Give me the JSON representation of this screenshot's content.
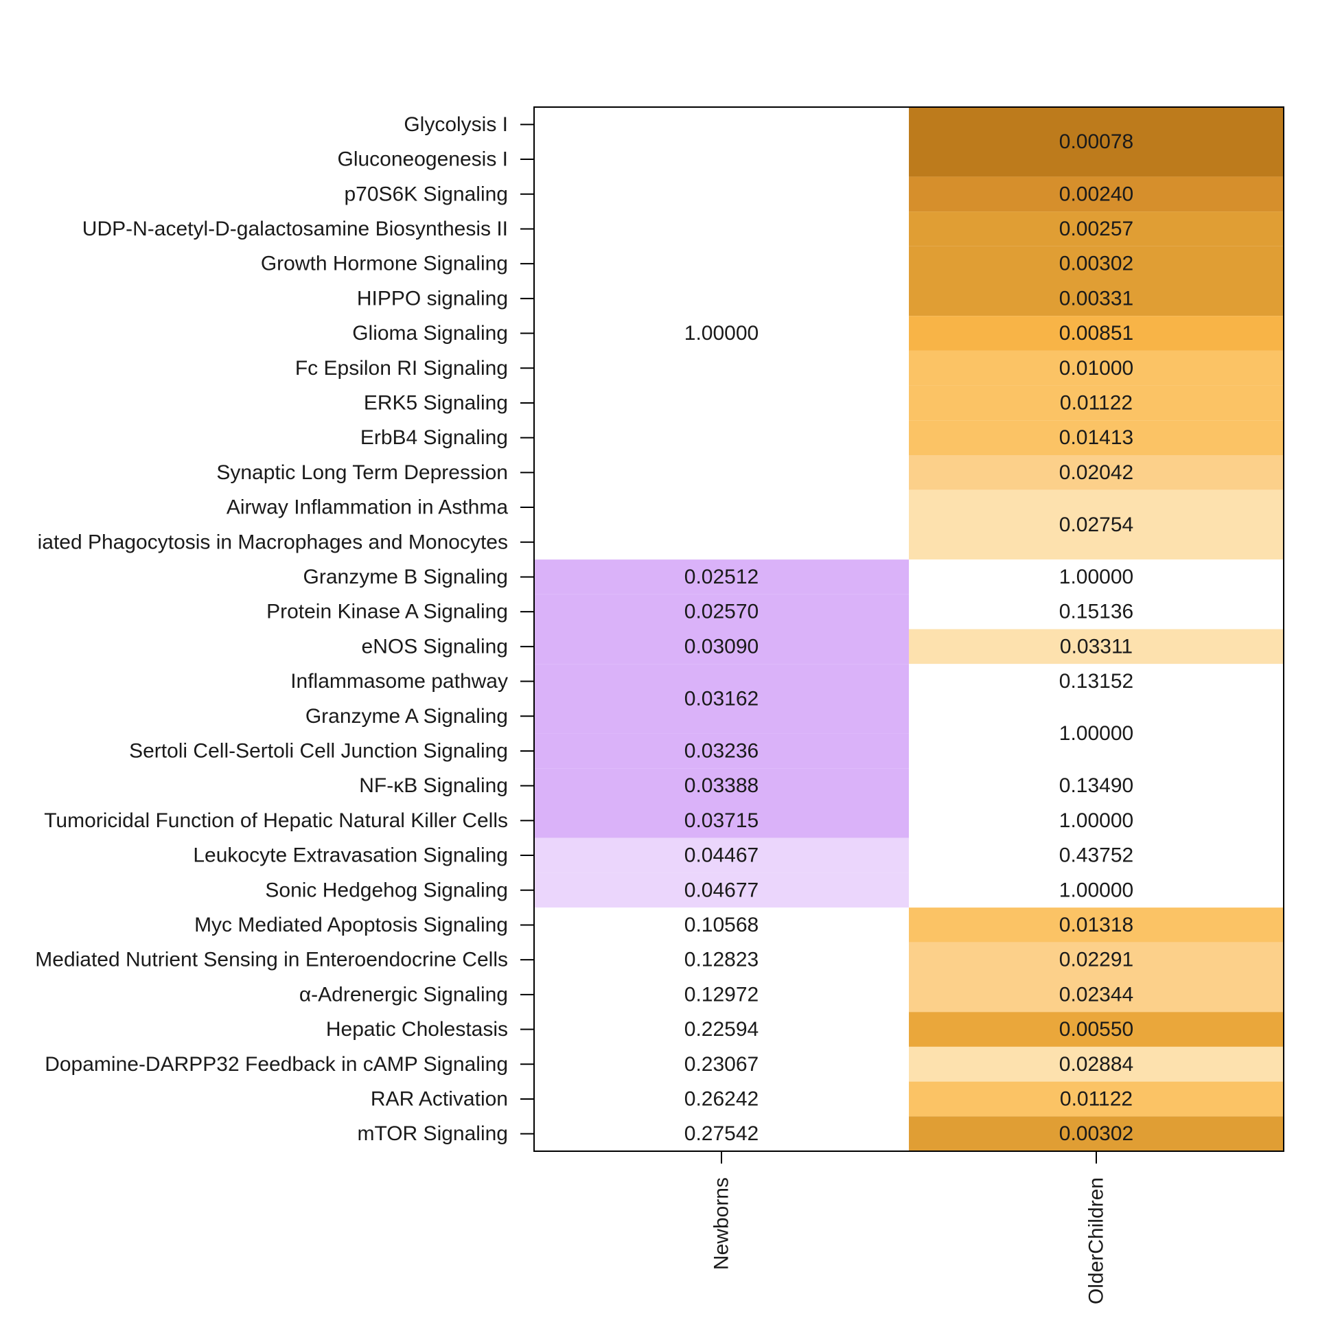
{
  "chart_data": {
    "type": "heatmap",
    "columns": [
      "Newborns",
      "OlderChildren"
    ],
    "rows": [
      "Glycolysis I",
      "Gluconeogenesis I",
      "p70S6K Signaling",
      "UDP-N-acetyl-D-galactosamine Biosynthesis II",
      "Growth Hormone Signaling",
      "HIPPO signaling",
      "Glioma Signaling",
      "Fc Epsilon RI Signaling",
      "ERK5 Signaling",
      "ErbB4 Signaling",
      "Synaptic Long Term Depression",
      "Airway Inflammation in Asthma",
      "iated Phagocytosis in Macrophages and Monocytes",
      "Granzyme B Signaling",
      "Protein Kinase A Signaling",
      "eNOS Signaling",
      "Inflammasome pathway",
      "Granzyme A Signaling",
      "Sertoli Cell-Sertoli Cell Junction Signaling",
      "NF-κB Signaling",
      "Tumoricidal Function of Hepatic Natural Killer Cells",
      "Leukocyte Extravasation Signaling",
      "Sonic Hedgehog Signaling",
      "Myc Mediated Apoptosis Signaling",
      "Mediated Nutrient Sensing in Enteroendocrine Cells",
      "α-Adrenergic Signaling",
      "Hepatic Cholestasis",
      "Dopamine-DARPP32 Feedback in cAMP Signaling",
      "RAR Activation",
      "mTOR Signaling"
    ],
    "cells": [
      {
        "col": 0,
        "start": 0,
        "span": 13,
        "value": "1.00000",
        "color": "#ffffff"
      },
      {
        "col": 0,
        "start": 13,
        "span": 1,
        "value": "0.02512",
        "color": "#dab2f9"
      },
      {
        "col": 0,
        "start": 14,
        "span": 1,
        "value": "0.02570",
        "color": "#dab2f9"
      },
      {
        "col": 0,
        "start": 15,
        "span": 1,
        "value": "0.03090",
        "color": "#dab2f9"
      },
      {
        "col": 0,
        "start": 16,
        "span": 2,
        "value": "0.03162",
        "color": "#dab2f9"
      },
      {
        "col": 0,
        "start": 18,
        "span": 1,
        "value": "0.03236",
        "color": "#dab2f9"
      },
      {
        "col": 0,
        "start": 19,
        "span": 1,
        "value": "0.03388",
        "color": "#dab2f9"
      },
      {
        "col": 0,
        "start": 20,
        "span": 1,
        "value": "0.03715",
        "color": "#dab2f9"
      },
      {
        "col": 0,
        "start": 21,
        "span": 1,
        "value": "0.04467",
        "color": "#ebd6fc"
      },
      {
        "col": 0,
        "start": 22,
        "span": 1,
        "value": "0.04677",
        "color": "#ebd6fc"
      },
      {
        "col": 0,
        "start": 23,
        "span": 1,
        "value": "0.10568",
        "color": "#ffffff"
      },
      {
        "col": 0,
        "start": 24,
        "span": 1,
        "value": "0.12823",
        "color": "#ffffff"
      },
      {
        "col": 0,
        "start": 25,
        "span": 1,
        "value": "0.12972",
        "color": "#ffffff"
      },
      {
        "col": 0,
        "start": 26,
        "span": 1,
        "value": "0.22594",
        "color": "#ffffff"
      },
      {
        "col": 0,
        "start": 27,
        "span": 1,
        "value": "0.23067",
        "color": "#ffffff"
      },
      {
        "col": 0,
        "start": 28,
        "span": 1,
        "value": "0.26242",
        "color": "#ffffff"
      },
      {
        "col": 0,
        "start": 29,
        "span": 1,
        "value": "0.27542",
        "color": "#ffffff"
      },
      {
        "col": 1,
        "start": 0,
        "span": 2,
        "value": "0.00078",
        "color": "#bd7b1c"
      },
      {
        "col": 1,
        "start": 2,
        "span": 1,
        "value": "0.00240",
        "color": "#d68f2c"
      },
      {
        "col": 1,
        "start": 3,
        "span": 1,
        "value": "0.00257",
        "color": "#e09e34"
      },
      {
        "col": 1,
        "start": 4,
        "span": 1,
        "value": "0.00302",
        "color": "#e09e34"
      },
      {
        "col": 1,
        "start": 5,
        "span": 1,
        "value": "0.00331",
        "color": "#e09e34"
      },
      {
        "col": 1,
        "start": 6,
        "span": 1,
        "value": "0.00851",
        "color": "#f8b447"
      },
      {
        "col": 1,
        "start": 7,
        "span": 1,
        "value": "0.01000",
        "color": "#fbc365"
      },
      {
        "col": 1,
        "start": 8,
        "span": 1,
        "value": "0.01122",
        "color": "#fbc365"
      },
      {
        "col": 1,
        "start": 9,
        "span": 1,
        "value": "0.01413",
        "color": "#fbc365"
      },
      {
        "col": 1,
        "start": 10,
        "span": 1,
        "value": "0.02042",
        "color": "#fcd08a"
      },
      {
        "col": 1,
        "start": 11,
        "span": 2,
        "value": "0.02754",
        "color": "#fde1ae"
      },
      {
        "col": 1,
        "start": 13,
        "span": 1,
        "value": "1.00000",
        "color": "#ffffff"
      },
      {
        "col": 1,
        "start": 14,
        "span": 1,
        "value": "0.15136",
        "color": "#ffffff"
      },
      {
        "col": 1,
        "start": 15,
        "span": 1,
        "value": "0.03311",
        "color": "#fde1ae"
      },
      {
        "col": 1,
        "start": 16,
        "span": 1,
        "value": "0.13152",
        "color": "#ffffff"
      },
      {
        "col": 1,
        "start": 17,
        "span": 2,
        "value": "1.00000",
        "color": "#ffffff"
      },
      {
        "col": 1,
        "start": 19,
        "span": 1,
        "value": "0.13490",
        "color": "#ffffff"
      },
      {
        "col": 1,
        "start": 20,
        "span": 1,
        "value": "1.00000",
        "color": "#ffffff"
      },
      {
        "col": 1,
        "start": 21,
        "span": 1,
        "value": "0.43752",
        "color": "#ffffff"
      },
      {
        "col": 1,
        "start": 22,
        "span": 1,
        "value": "1.00000",
        "color": "#ffffff"
      },
      {
        "col": 1,
        "start": 23,
        "span": 1,
        "value": "0.01318",
        "color": "#fbc365"
      },
      {
        "col": 1,
        "start": 24,
        "span": 1,
        "value": "0.02291",
        "color": "#fcd08a"
      },
      {
        "col": 1,
        "start": 25,
        "span": 1,
        "value": "0.02344",
        "color": "#fcd08a"
      },
      {
        "col": 1,
        "start": 26,
        "span": 1,
        "value": "0.00550",
        "color": "#eaa73b"
      },
      {
        "col": 1,
        "start": 27,
        "span": 1,
        "value": "0.02884",
        "color": "#fde1ae"
      },
      {
        "col": 1,
        "start": 28,
        "span": 1,
        "value": "0.01122",
        "color": "#fbc365"
      },
      {
        "col": 1,
        "start": 29,
        "span": 1,
        "value": "0.00302",
        "color": "#e09e34"
      }
    ]
  }
}
